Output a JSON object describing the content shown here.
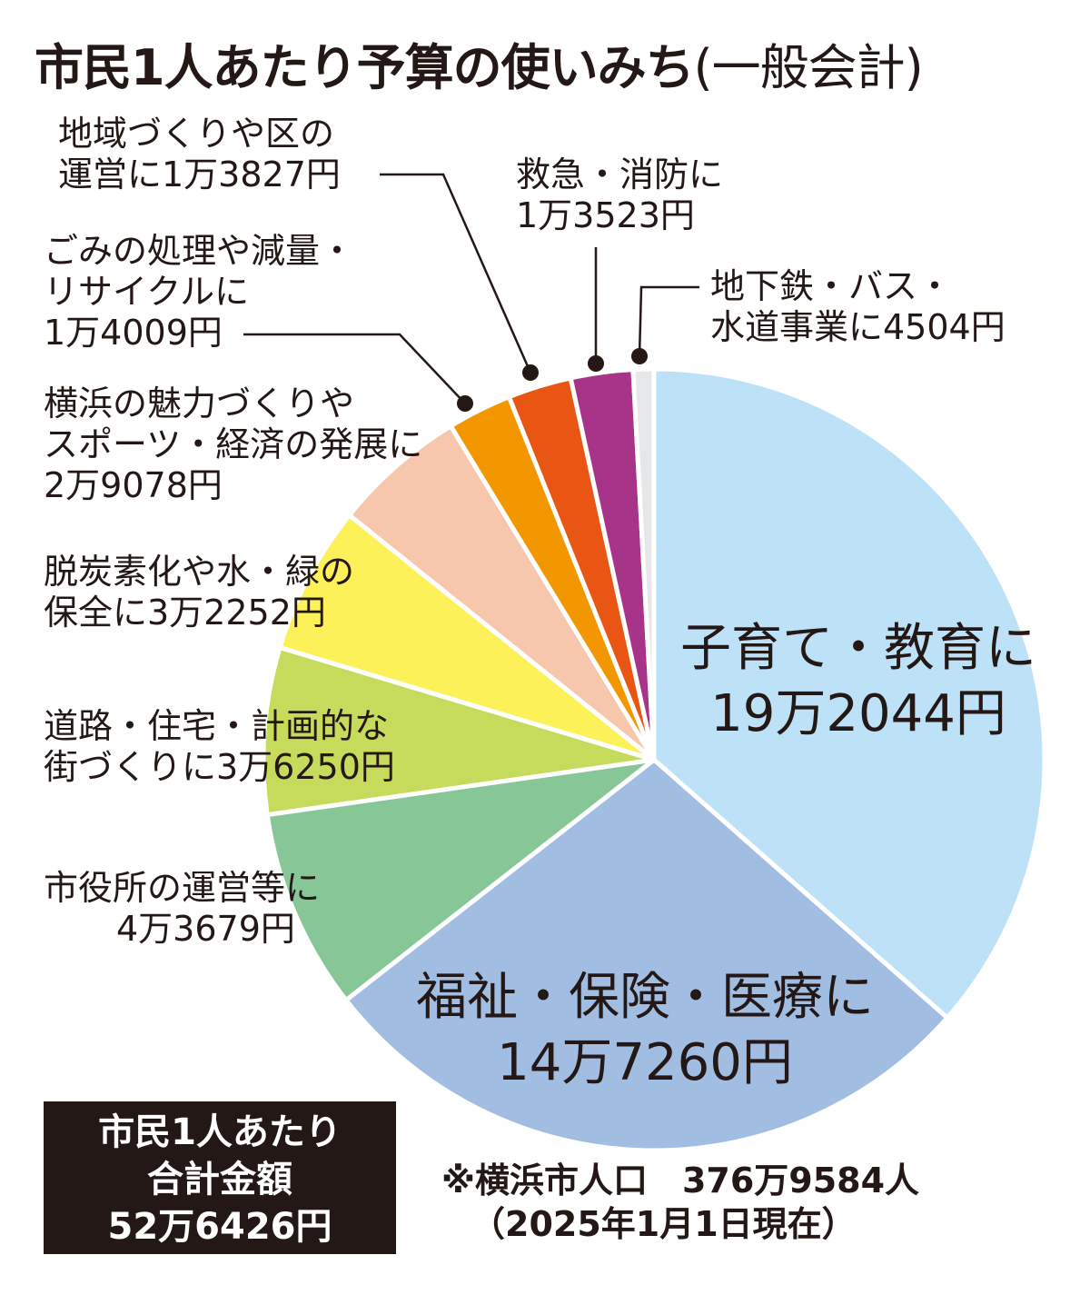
{
  "title": {
    "main": "市民1人あたり予算の使いみち",
    "sub": "(一般会計)"
  },
  "chart_data": {
    "type": "pie",
    "unit": "円",
    "slices": [
      {
        "label_lines": [
          "子育て・教育に",
          "19万2044円"
        ],
        "value": 192044,
        "color": "#bde2f7"
      },
      {
        "label_lines": [
          "福祉・保険・医療に",
          "14万7260円"
        ],
        "value": 147260,
        "color": "#a2bde2"
      },
      {
        "label_lines": [
          "市役所の運営等に",
          "4万3679円"
        ],
        "value": 43679,
        "color": "#87c797"
      },
      {
        "label_lines": [
          "道路・住宅・計画的な",
          "街づくりに3万6250円"
        ],
        "value": 36250,
        "color": "#c6da5b"
      },
      {
        "label_lines": [
          "脱炭素化や水・緑の",
          "保全に3万2252円"
        ],
        "value": 32252,
        "color": "#fdf15a"
      },
      {
        "label_lines": [
          "横浜の魅力づくりや",
          "スポーツ・経済の発展に",
          "2万9078円"
        ],
        "value": 29078,
        "color": "#f6c6ad"
      },
      {
        "label_lines": [
          "ごみの処理や減量・",
          "リサイクルに",
          "1万4009円"
        ],
        "value": 14009,
        "color": "#f29700"
      },
      {
        "label_lines": [
          "地域づくりや区の",
          "運営に1万3827円"
        ],
        "value": 13827,
        "color": "#e95513"
      },
      {
        "label_lines": [
          "救急・消防に",
          "1万3523円"
        ],
        "value": 13523,
        "color": "#a73489"
      },
      {
        "label_lines": [
          "地下鉄・バス・",
          "水道事業に4504円"
        ],
        "value": 4504,
        "color": "#e6e7e8"
      }
    ]
  },
  "total": {
    "lines": [
      "市民1人あたり",
      "合計金額",
      "52万6426円"
    ]
  },
  "note": {
    "lines": [
      "※横浜市人口　376万9584人",
      "（2025年1月1日現在）"
    ]
  }
}
